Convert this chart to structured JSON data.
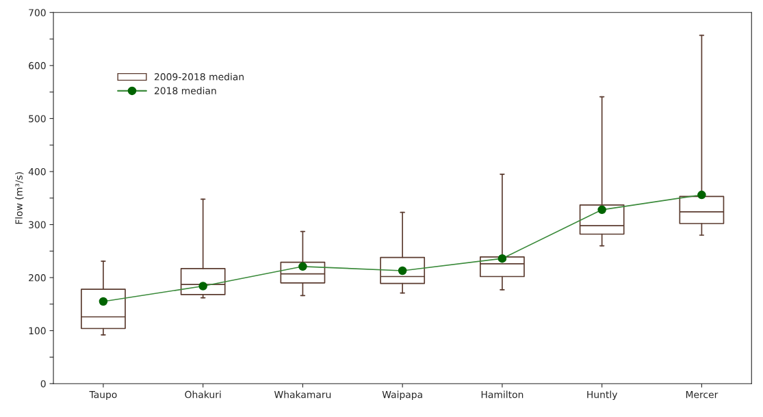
{
  "chart_data": {
    "type": "box",
    "ylabel": "Flow (m³/s)",
    "categories": [
      "Taupo",
      "Ohakuri",
      "Whakamaru",
      "Waipapa",
      "Hamilton",
      "Huntly",
      "Mercer"
    ],
    "ylim": [
      0,
      700
    ],
    "yticks": [
      0,
      {
        "value": 50,
        "label": null
      },
      100,
      {
        "value": 150,
        "label": null
      },
      200,
      {
        "value": 250,
        "label": null
      },
      300,
      {
        "value": 350,
        "label": null
      },
      400,
      {
        "value": 450,
        "label": null
      },
      500,
      {
        "value": 550,
        "label": null
      },
      600,
      {
        "value": 650,
        "label": null
      },
      700
    ],
    "grid": false,
    "legend": "top left",
    "series": [
      {
        "name": "2009-2018 median",
        "type": "box",
        "color": "#5a3a2e",
        "boxes": [
          {
            "low": 92,
            "q1": 104,
            "median": 126,
            "q3": 178,
            "high": 231
          },
          {
            "low": 162,
            "q1": 168,
            "median": 187,
            "q3": 217,
            "high": 348
          },
          {
            "low": 166,
            "q1": 190,
            "median": 207,
            "q3": 229,
            "high": 287
          },
          {
            "low": 171,
            "q1": 189,
            "median": 202,
            "q3": 238,
            "high": 323
          },
          {
            "low": 177,
            "q1": 202,
            "median": 226,
            "q3": 239,
            "high": 395
          },
          {
            "low": 260,
            "q1": 282,
            "median": 298,
            "q3": 337,
            "high": 541
          },
          {
            "low": 280,
            "q1": 302,
            "median": 324,
            "q3": 353,
            "high": 657
          }
        ]
      },
      {
        "name": "2018 median",
        "type": "line",
        "color": "#3a8a3a",
        "marker": "circle",
        "values": [
          155,
          184,
          221,
          213,
          236,
          328,
          356
        ]
      }
    ]
  }
}
